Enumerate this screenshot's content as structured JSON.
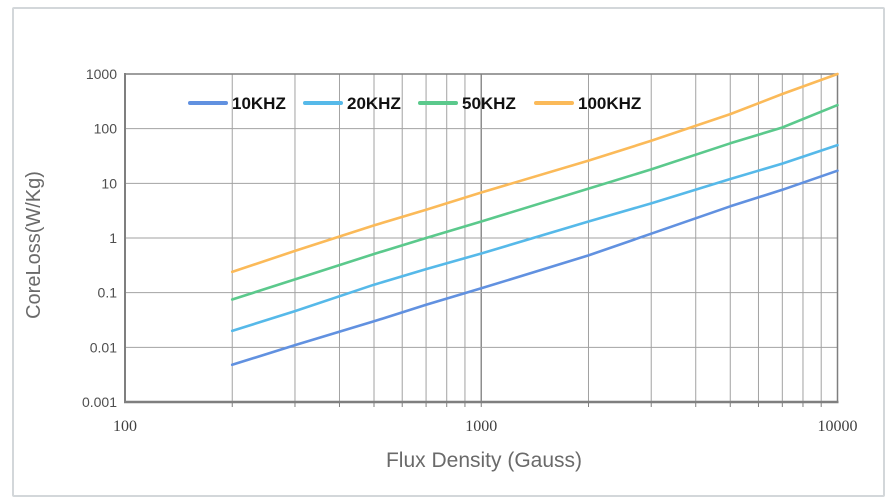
{
  "page": {
    "background": "#ffffff",
    "border_color": "#d3d7da"
  },
  "chart_data": {
    "type": "line",
    "title": "",
    "xlabel": "Flux Density (Gauss)",
    "ylabel": "CoreLoss(W/Kg)",
    "x_scale": "log",
    "y_scale": "log",
    "xlim": [
      100,
      10000
    ],
    "ylim": [
      0.001,
      1000
    ],
    "grid": "major-y, major+minor-x",
    "legend_position": "top-inside",
    "x_major_ticks": [
      100,
      1000,
      10000
    ],
    "x_tick_labels": [
      "100",
      "1000",
      "10000"
    ],
    "y_major_ticks": [
      1000,
      100,
      10,
      1,
      0.1,
      0.01,
      0.001
    ],
    "y_tick_labels": [
      "1000",
      "100",
      "10",
      "1",
      "0.1",
      "0.01",
      "0.001"
    ],
    "x": [
      200,
      300,
      500,
      700,
      1000,
      2000,
      3000,
      5000,
      7000,
      10000
    ],
    "series": [
      {
        "name": "10KHZ",
        "color": "#6191e0",
        "values": [
          0.0048,
          0.011,
          0.03,
          0.06,
          0.12,
          0.48,
          1.2,
          3.8,
          7.6,
          17
        ]
      },
      {
        "name": "20KHZ",
        "color": "#56b9e9",
        "values": [
          0.02,
          0.046,
          0.14,
          0.27,
          0.52,
          2.0,
          4.3,
          12,
          23,
          50
        ]
      },
      {
        "name": "50KHZ",
        "color": "#5bc98c",
        "values": [
          0.075,
          0.175,
          0.51,
          1.0,
          2.0,
          8.0,
          18,
          54,
          105,
          270
        ]
      },
      {
        "name": "100KHZ",
        "color": "#fbba59",
        "values": [
          0.24,
          0.58,
          1.7,
          3.3,
          6.8,
          26,
          60,
          185,
          430,
          1000
        ]
      }
    ],
    "style_colors": {
      "gridline": "#a2a2a2",
      "major_gridline": "#8e8e8e",
      "frame": "#7f7f7f",
      "tick_label": "#4f4f4f",
      "axis_title": "#6a6a6a",
      "legend_text": "#111111"
    }
  }
}
